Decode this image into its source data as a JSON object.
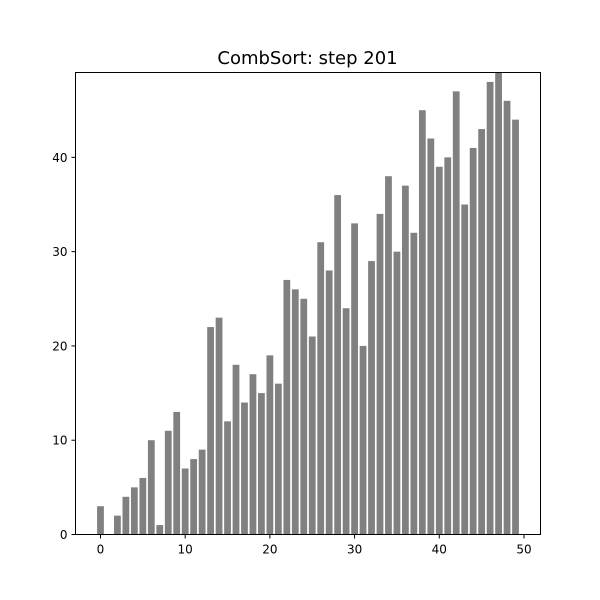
{
  "chart_data": {
    "type": "bar",
    "title": "CombSort: step 201",
    "xlabel": "",
    "ylabel": "",
    "x": [
      0,
      1,
      2,
      3,
      4,
      5,
      6,
      7,
      8,
      9,
      10,
      11,
      12,
      13,
      14,
      15,
      16,
      17,
      18,
      19,
      20,
      21,
      22,
      23,
      24,
      25,
      26,
      27,
      28,
      29,
      30,
      31,
      32,
      33,
      34,
      35,
      36,
      37,
      38,
      39,
      40,
      41,
      42,
      43,
      44,
      45,
      46,
      47,
      48,
      49
    ],
    "values": [
      3,
      0,
      2,
      4,
      5,
      6,
      10,
      1,
      11,
      13,
      7,
      8,
      9,
      22,
      23,
      12,
      18,
      14,
      17,
      15,
      19,
      16,
      27,
      26,
      25,
      21,
      31,
      28,
      36,
      24,
      33,
      20,
      29,
      34,
      38,
      30,
      37,
      32,
      45,
      42,
      39,
      40,
      47,
      35,
      41,
      43,
      48,
      49,
      46,
      44
    ],
    "xlim": [
      -2.95,
      51.95
    ],
    "ylim": [
      0,
      49
    ],
    "xticks": [
      0,
      10,
      20,
      30,
      40,
      50
    ],
    "yticks": [
      0,
      10,
      20,
      30,
      40
    ],
    "grid": false,
    "bar_color": "#808080"
  }
}
